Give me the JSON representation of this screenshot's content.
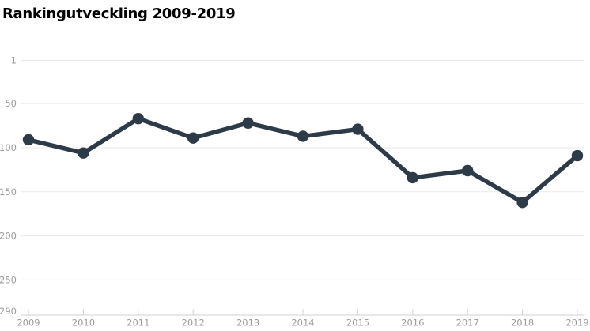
{
  "title": "Rankingutveckling 2009-2019",
  "colors": {
    "line": "#2d3b49",
    "marker": "#2d3b49",
    "grid": "#e8e8e8",
    "axis": "#ccd0d3",
    "tick_label": "#9b9b9b",
    "title_text": "#000000",
    "background": "#ffffff"
  },
  "chart_data": {
    "type": "line",
    "title": "Rankingutveckling 2009-2019",
    "categories": [
      "2009",
      "2010",
      "2011",
      "2012",
      "2013",
      "2014",
      "2015",
      "2016",
      "2017",
      "2018",
      "2019"
    ],
    "values": [
      91,
      106,
      67,
      89,
      72,
      87,
      79,
      134,
      126,
      162,
      109
    ],
    "xlabel": "",
    "ylabel": "",
    "y_ticks": [
      1,
      50,
      100,
      150,
      200,
      250,
      290
    ],
    "ylim": [
      1,
      290
    ],
    "y_axis_inverted": true,
    "grid": true,
    "legend": "none",
    "marker": "circle"
  }
}
